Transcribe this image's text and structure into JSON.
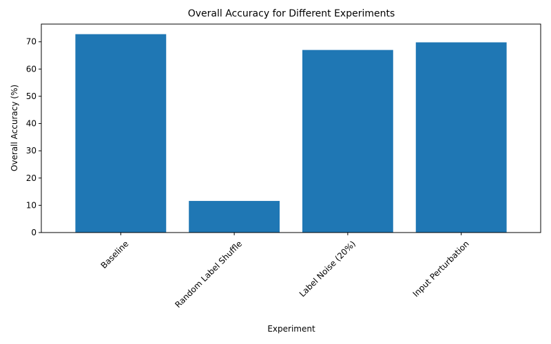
{
  "chart_data": {
    "type": "bar",
    "title": "Overall Accuracy for Different Experiments",
    "xlabel": "Experiment",
    "ylabel": "Overall Accuracy (%)",
    "categories": [
      "Baseline",
      "Random Label Shuffle",
      "Label Noise (20%)",
      "Input Perturbation"
    ],
    "values": [
      72.8,
      11.6,
      67.0,
      69.8
    ],
    "ylim": [
      0,
      76.5
    ],
    "yticks": [
      0,
      10,
      20,
      30,
      40,
      50,
      60,
      70
    ],
    "bar_color": "#1f77b4",
    "grid": false,
    "legend": "none"
  }
}
